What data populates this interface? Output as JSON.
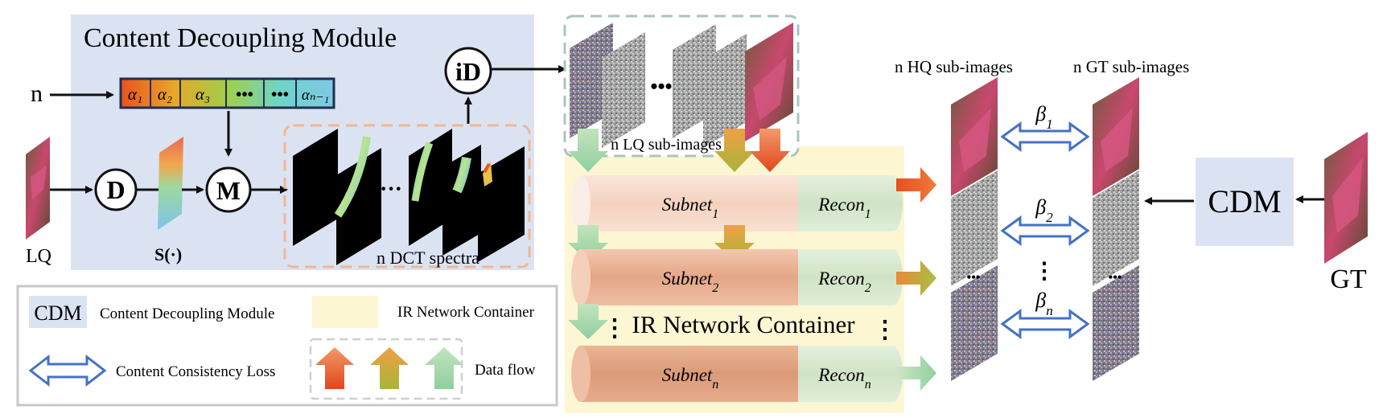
{
  "cdm": {
    "title": "Content Decoupling Module",
    "n_label": "n",
    "alpha_bar": [
      "α₁",
      "α₂",
      "α₃",
      "•••",
      "•••",
      "αₙ₋₁"
    ],
    "d_label": "D",
    "m_label": "M",
    "id_label": "iD",
    "s_label": "S(·)",
    "lq_label": "LQ",
    "dct_label": "n DCT spectra",
    "dct_dots": "···"
  },
  "container": {
    "lq_subimages_label": "n LQ sub-images",
    "lq_dots": "•••",
    "title": "IR Network Container",
    "subnets": [
      {
        "name": "Subnet",
        "sub": "1",
        "recon": "Recon",
        "recon_sub": "1"
      },
      {
        "name": "Subnet",
        "sub": "2",
        "recon": "Recon",
        "recon_sub": "2"
      },
      {
        "name": "Subnet",
        "sub": "n",
        "recon": "Recon",
        "recon_sub": "n"
      }
    ],
    "vdots": "⋮"
  },
  "right": {
    "hq_label": "n HQ sub-images",
    "gt_label": "n GT sub-images",
    "betas": [
      {
        "sym": "β",
        "sub": "1"
      },
      {
        "sym": "β",
        "sub": "2"
      },
      {
        "sym": "β",
        "sub": "n"
      }
    ],
    "beta_vdots": "⋮",
    "cdm_label": "CDM",
    "gt_label_big": "GT"
  },
  "legend": {
    "cdm_abbr": "CDM",
    "cdm_text": "Content Decoupling Module",
    "ir_text": "IR Network Container",
    "loss_text": "Content Consistency Loss",
    "flow_text": "Data flow"
  },
  "colors": {
    "cdm_bg": "#dbe3f3",
    "container_bg": "#fdf6d3",
    "loss_arrow": "#4472c4",
    "subnet1": "#f6dccd",
    "subnet2": "#eab699",
    "subnetn": "#e3a882",
    "recon_bg": "#d9e9d2"
  }
}
